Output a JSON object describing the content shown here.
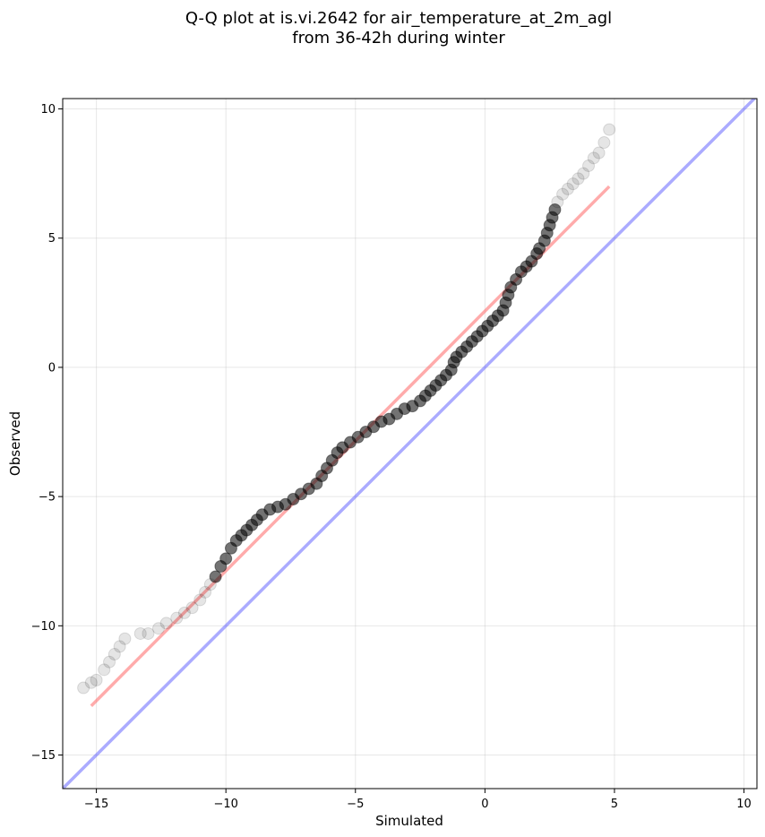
{
  "chart_data": {
    "type": "scatter",
    "title": "Q-Q plot at is.vi.2642 for air_temperature_at_2m_agl",
    "subtitle": "from 36-42h during winter",
    "xlabel": "Simulated",
    "ylabel": "Observed",
    "xlim": [
      -16.3,
      10.5
    ],
    "ylim": [
      -16.3,
      10.4
    ],
    "x_ticks": [
      -15,
      -10,
      -5,
      0,
      5,
      10
    ],
    "y_ticks": [
      -15,
      -10,
      -5,
      0,
      5,
      10
    ],
    "x_tick_labels": [
      "−15",
      "−10",
      "−5",
      "0",
      "5",
      "10"
    ],
    "y_tick_labels": [
      "−15",
      "−10",
      "−5",
      "0",
      "5",
      "10"
    ],
    "grid": true,
    "series": [
      {
        "type": "scatter",
        "color": "#000000",
        "points": [
          [
            -15.5,
            -12.4
          ],
          [
            -15.2,
            -12.2
          ],
          [
            -15.0,
            -12.1
          ],
          [
            -14.7,
            -11.7
          ],
          [
            -14.5,
            -11.4
          ],
          [
            -14.3,
            -11.1
          ],
          [
            -14.1,
            -10.8
          ],
          [
            -13.9,
            -10.5
          ],
          [
            -13.3,
            -10.3
          ],
          [
            -13.0,
            -10.3
          ],
          [
            -12.6,
            -10.1
          ],
          [
            -12.3,
            -9.9
          ],
          [
            -11.9,
            -9.7
          ],
          [
            -11.6,
            -9.5
          ],
          [
            -11.3,
            -9.3
          ],
          [
            -11.0,
            -9.0
          ],
          [
            -10.8,
            -8.7
          ],
          [
            -10.6,
            -8.4
          ],
          [
            -10.4,
            -8.1
          ],
          [
            -10.2,
            -7.7
          ],
          [
            -10.0,
            -7.4
          ],
          [
            -9.8,
            -7.0
          ],
          [
            -9.6,
            -6.7
          ],
          [
            -9.4,
            -6.5
          ],
          [
            -9.2,
            -6.3
          ],
          [
            -9.0,
            -6.1
          ],
          [
            -8.8,
            -5.9
          ],
          [
            -8.6,
            -5.7
          ],
          [
            -8.3,
            -5.5
          ],
          [
            -8.0,
            -5.4
          ],
          [
            -7.7,
            -5.3
          ],
          [
            -7.4,
            -5.1
          ],
          [
            -7.1,
            -4.9
          ],
          [
            -6.8,
            -4.7
          ],
          [
            -6.5,
            -4.5
          ],
          [
            -6.3,
            -4.2
          ],
          [
            -6.1,
            -3.9
          ],
          [
            -5.9,
            -3.6
          ],
          [
            -5.7,
            -3.3
          ],
          [
            -5.5,
            -3.1
          ],
          [
            -5.2,
            -2.9
          ],
          [
            -4.9,
            -2.7
          ],
          [
            -4.6,
            -2.5
          ],
          [
            -4.3,
            -2.3
          ],
          [
            -4.0,
            -2.1
          ],
          [
            -3.7,
            -2.0
          ],
          [
            -3.4,
            -1.8
          ],
          [
            -3.1,
            -1.6
          ],
          [
            -2.8,
            -1.5
          ],
          [
            -2.5,
            -1.3
          ],
          [
            -2.3,
            -1.1
          ],
          [
            -2.1,
            -0.9
          ],
          [
            -1.9,
            -0.7
          ],
          [
            -1.7,
            -0.5
          ],
          [
            -1.5,
            -0.3
          ],
          [
            -1.3,
            -0.1
          ],
          [
            -1.2,
            0.2
          ],
          [
            -1.1,
            0.4
          ],
          [
            -0.9,
            0.6
          ],
          [
            -0.7,
            0.8
          ],
          [
            -0.5,
            1.0
          ],
          [
            -0.3,
            1.2
          ],
          [
            -0.1,
            1.4
          ],
          [
            0.1,
            1.6
          ],
          [
            0.3,
            1.8
          ],
          [
            0.5,
            2.0
          ],
          [
            0.7,
            2.2
          ],
          [
            0.8,
            2.5
          ],
          [
            0.9,
            2.8
          ],
          [
            1.0,
            3.1
          ],
          [
            1.2,
            3.4
          ],
          [
            1.4,
            3.7
          ],
          [
            1.6,
            3.9
          ],
          [
            1.8,
            4.1
          ],
          [
            2.0,
            4.4
          ],
          [
            2.1,
            4.6
          ],
          [
            2.3,
            4.9
          ],
          [
            2.4,
            5.2
          ],
          [
            2.5,
            5.5
          ],
          [
            2.6,
            5.8
          ],
          [
            2.7,
            6.1
          ],
          [
            2.8,
            6.4
          ],
          [
            3.0,
            6.7
          ],
          [
            3.2,
            6.9
          ],
          [
            3.4,
            7.1
          ],
          [
            3.6,
            7.3
          ],
          [
            3.8,
            7.5
          ],
          [
            4.0,
            7.8
          ],
          [
            4.2,
            8.1
          ],
          [
            4.4,
            8.3
          ],
          [
            4.6,
            8.7
          ],
          [
            4.8,
            9.2
          ]
        ]
      },
      {
        "type": "line",
        "name": "",
        "color": "#ff6666",
        "points": [
          [
            -15.2,
            -13.1
          ],
          [
            4.8,
            7.0
          ]
        ]
      },
      {
        "type": "line",
        "name": "",
        "color": "#6666ff",
        "points": [
          [
            -16.3,
            -16.3
          ],
          [
            10.5,
            10.5
          ]
        ]
      }
    ]
  }
}
